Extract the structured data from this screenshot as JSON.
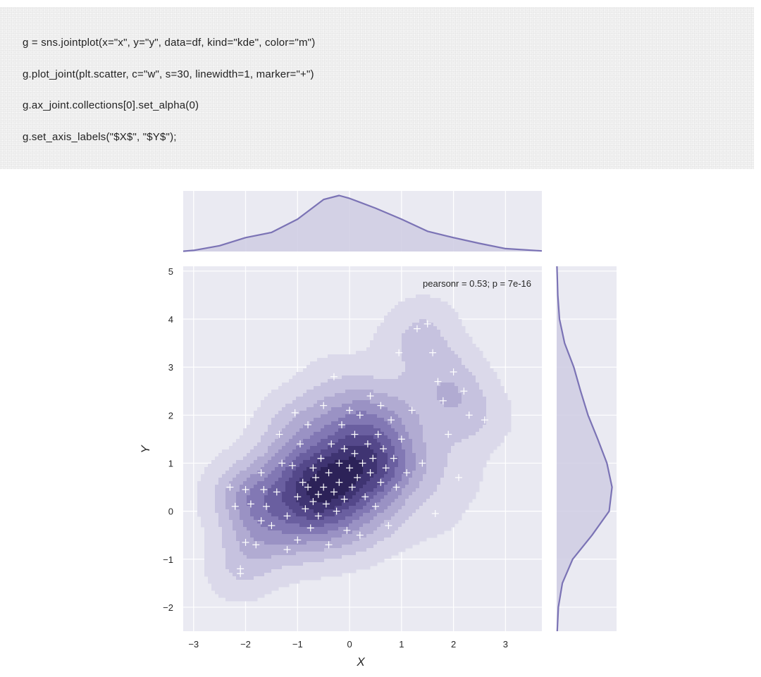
{
  "code": {
    "lines": [
      "g = sns.jointplot(x=\"x\", y=\"y\", data=df, kind=\"kde\", color=\"m\")",
      "g.plot_joint(plt.scatter, c=\"w\", s=30, linewidth=1, marker=\"+\")",
      "g.ax_joint.collections[0].set_alpha(0)",
      "g.set_axis_labels(\"$X$\", \"$Y$\");"
    ]
  },
  "colors": {
    "background": "#eaeaf2",
    "kde_line": "#7b73b5",
    "kde_fill": "#cfcde3",
    "contour_levels": [
      "#dbd9ea",
      "#c6c2df",
      "#b1abd2",
      "#9a92c4",
      "#8278b4",
      "#6a5fa0",
      "#54488a",
      "#3f3472",
      "#2c2258"
    ],
    "marker": "#ffffff"
  },
  "chart_data": {
    "type": "scatter",
    "kind": "kde jointplot with scatter overlay",
    "annotation": "pearsonr = 0.53; p = 7e-16",
    "xlabel": "X",
    "ylabel": "Y",
    "xlim": [
      -3.2,
      3.7
    ],
    "ylim": [
      -2.5,
      5.1
    ],
    "x_ticks": [
      "−3",
      "−2",
      "−1",
      "0",
      "1",
      "2",
      "3"
    ],
    "y_ticks": [
      "−2",
      "−1",
      "0",
      "1",
      "2",
      "3",
      "4",
      "5"
    ],
    "grid": true,
    "points": [
      [
        -2.3,
        0.5
      ],
      [
        -2.2,
        0.1
      ],
      [
        -2.1,
        -1.2
      ],
      [
        -2.1,
        -1.3
      ],
      [
        -2.0,
        -0.65
      ],
      [
        -2.0,
        0.45
      ],
      [
        -1.9,
        0.15
      ],
      [
        -1.8,
        -0.7
      ],
      [
        -1.7,
        -0.2
      ],
      [
        -1.7,
        0.8
      ],
      [
        -1.65,
        0.45
      ],
      [
        -1.6,
        0.1
      ],
      [
        -1.5,
        -0.3
      ],
      [
        -1.4,
        0.4
      ],
      [
        -1.35,
        1.6
      ],
      [
        -1.3,
        1.0
      ],
      [
        -1.2,
        -0.8
      ],
      [
        -1.2,
        -0.1
      ],
      [
        -1.1,
        0.95
      ],
      [
        -1.05,
        2.05
      ],
      [
        -1.0,
        0.3
      ],
      [
        -1.0,
        -0.6
      ],
      [
        -0.95,
        1.4
      ],
      [
        -0.9,
        0.6
      ],
      [
        -0.85,
        0.05
      ],
      [
        -0.8,
        0.5
      ],
      [
        -0.8,
        1.8
      ],
      [
        -0.75,
        -0.35
      ],
      [
        -0.7,
        0.2
      ],
      [
        -0.7,
        0.9
      ],
      [
        -0.65,
        0.7
      ],
      [
        -0.6,
        0.35
      ],
      [
        -0.6,
        -0.1
      ],
      [
        -0.55,
        1.1
      ],
      [
        -0.5,
        0.5
      ],
      [
        -0.5,
        2.2
      ],
      [
        -0.45,
        0.15
      ],
      [
        -0.4,
        0.8
      ],
      [
        -0.4,
        -0.7
      ],
      [
        -0.35,
        1.4
      ],
      [
        -0.3,
        0.4
      ],
      [
        -0.3,
        2.8
      ],
      [
        -0.25,
        0.0
      ],
      [
        -0.2,
        1.0
      ],
      [
        -0.2,
        0.6
      ],
      [
        -0.15,
        1.8
      ],
      [
        -0.1,
        0.25
      ],
      [
        -0.1,
        1.3
      ],
      [
        -0.05,
        -0.4
      ],
      [
        0.0,
        0.9
      ],
      [
        0.0,
        2.1
      ],
      [
        0.05,
        0.5
      ],
      [
        0.1,
        1.2
      ],
      [
        0.1,
        1.6
      ],
      [
        0.15,
        0.7
      ],
      [
        0.2,
        -0.5
      ],
      [
        0.2,
        2.0
      ],
      [
        0.25,
        1.0
      ],
      [
        0.3,
        0.3
      ],
      [
        0.35,
        1.4
      ],
      [
        0.4,
        0.8
      ],
      [
        0.4,
        2.4
      ],
      [
        0.45,
        1.1
      ],
      [
        0.5,
        0.1
      ],
      [
        0.55,
        1.6
      ],
      [
        0.6,
        0.6
      ],
      [
        0.6,
        2.2
      ],
      [
        0.65,
        1.3
      ],
      [
        0.7,
        0.9
      ],
      [
        0.75,
        -0.3
      ],
      [
        0.8,
        1.9
      ],
      [
        0.85,
        1.1
      ],
      [
        0.9,
        0.5
      ],
      [
        0.95,
        3.3
      ],
      [
        1.0,
        1.5
      ],
      [
        1.1,
        0.8
      ],
      [
        1.2,
        2.1
      ],
      [
        1.3,
        3.8
      ],
      [
        1.4,
        1.0
      ],
      [
        1.5,
        3.9
      ],
      [
        1.6,
        3.3
      ],
      [
        1.65,
        -0.05
      ],
      [
        1.7,
        2.7
      ],
      [
        1.8,
        2.3
      ],
      [
        1.9,
        1.6
      ],
      [
        2.0,
        2.9
      ],
      [
        2.1,
        0.7
      ],
      [
        2.2,
        2.5
      ],
      [
        2.3,
        2.0
      ],
      [
        2.6,
        1.9
      ]
    ],
    "marginal_x_density": {
      "x": [
        -3.5,
        -3.0,
        -2.5,
        -2.0,
        -1.5,
        -1.0,
        -0.5,
        -0.2,
        0.0,
        0.5,
        1.0,
        1.5,
        2.0,
        2.5,
        3.0,
        3.7
      ],
      "density": [
        0.005,
        0.02,
        0.1,
        0.24,
        0.33,
        0.56,
        0.9,
        0.97,
        0.92,
        0.75,
        0.56,
        0.35,
        0.24,
        0.14,
        0.05,
        0.01
      ]
    },
    "marginal_y_density": {
      "y": [
        -2.5,
        -2.0,
        -1.5,
        -1.0,
        -0.5,
        0.0,
        0.5,
        1.0,
        1.5,
        2.0,
        2.5,
        3.0,
        3.5,
        4.0,
        4.5,
        5.1
      ],
      "density": [
        0.01,
        0.03,
        0.1,
        0.28,
        0.62,
        0.92,
        0.97,
        0.88,
        0.72,
        0.55,
        0.42,
        0.3,
        0.14,
        0.05,
        0.02,
        0.005
      ]
    }
  }
}
